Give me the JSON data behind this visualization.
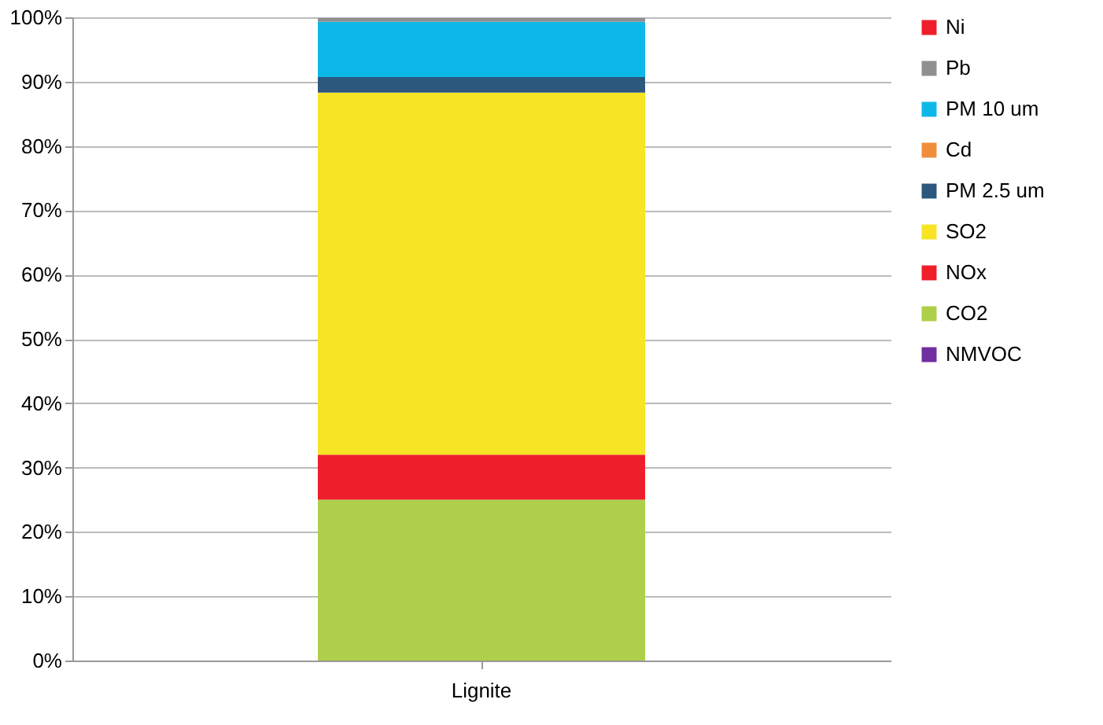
{
  "chart_data": {
    "type": "bar",
    "stacked": true,
    "categories": [
      "Lignite"
    ],
    "series": [
      {
        "name": "NMVOC",
        "color": "#7030a0",
        "values": [
          0
        ]
      },
      {
        "name": "CO2",
        "color": "#aecf4a",
        "values": [
          25
        ]
      },
      {
        "name": "NOx",
        "color": "#ee1f2a",
        "values": [
          7
        ]
      },
      {
        "name": "SO2",
        "color": "#f7e425",
        "values": [
          56.3
        ]
      },
      {
        "name": "PM 2.5 um",
        "color": "#2c587e",
        "values": [
          2.4
        ]
      },
      {
        "name": "Cd",
        "color": "#f08e3c",
        "values": [
          0
        ]
      },
      {
        "name": "PM 10 um",
        "color": "#0cb8e8",
        "values": [
          8.6
        ]
      },
      {
        "name": "Pb",
        "color": "#8f8f8f",
        "values": [
          0.6
        ]
      },
      {
        "name": "Ni",
        "color": "#ee1f2a",
        "values": [
          0
        ]
      }
    ],
    "ylim": [
      0,
      100
    ],
    "yticks": [
      {
        "value": 0,
        "label": "0%"
      },
      {
        "value": 10,
        "label": "10%"
      },
      {
        "value": 20,
        "label": "20%"
      },
      {
        "value": 30,
        "label": "30%"
      },
      {
        "value": 40,
        "label": "40%"
      },
      {
        "value": 50,
        "label": "50%"
      },
      {
        "value": 60,
        "label": "60%"
      },
      {
        "value": 70,
        "label": "70%"
      },
      {
        "value": 80,
        "label": "80%"
      },
      {
        "value": 90,
        "label": "90%"
      },
      {
        "value": 100,
        "label": "100%"
      }
    ],
    "grid": "y",
    "legend": "right"
  }
}
